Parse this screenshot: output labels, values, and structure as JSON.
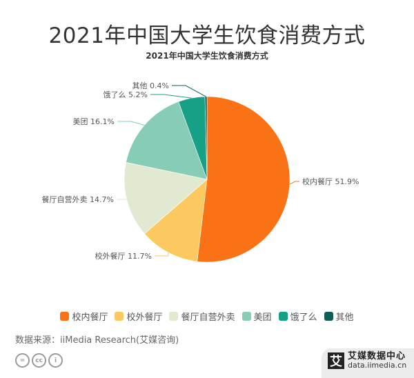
{
  "header": {
    "title": "2021年中国大学生饮食消费方式",
    "subtitle": "2021年中国大学生饮食消费方式"
  },
  "chart_data": {
    "type": "pie",
    "title": "2021年中国大学生饮食消费方式",
    "categories": [
      "校内餐厅",
      "校外餐厅",
      "餐厅自营外卖",
      "美团",
      "饿了么",
      "其他"
    ],
    "values": [
      51.9,
      11.7,
      14.7,
      16.1,
      5.2,
      0.4
    ],
    "unit": "%",
    "colors": [
      "#f97216",
      "#fbc95f",
      "#e1ead0",
      "#87ccb6",
      "#16a085",
      "#0e5e55"
    ],
    "labels": [
      "校内餐厅 51.9%",
      "校外餐厅 11.7%",
      "餐厅自营外卖 14.7%",
      "美团 16.1%",
      "饿了么 5.2%",
      "其他 0.4%"
    ],
    "start_angle": "12 o'clock, clockwise",
    "legend_position": "bottom"
  },
  "legend": {
    "items": [
      {
        "label": "校内餐厅",
        "color": "#f97216"
      },
      {
        "label": "校外餐厅",
        "color": "#fbc95f"
      },
      {
        "label": "餐厅自营外卖",
        "color": "#e1ead0"
      },
      {
        "label": "美团",
        "color": "#87ccb6"
      },
      {
        "label": "饿了么",
        "color": "#16a085"
      },
      {
        "label": "其他",
        "color": "#0e5e55"
      }
    ]
  },
  "footer": {
    "source": "数据来源：iiMedia Research(艾媒咨询)",
    "license_icons": [
      "cc-nd-icon",
      "cc-icon",
      "cc-by-icon"
    ],
    "license_text": [
      "=",
      "cc",
      "i"
    ],
    "brand_logo": "艾",
    "brand_name": "艾媒数据中心",
    "brand_url": "data.iimedia.cn"
  }
}
